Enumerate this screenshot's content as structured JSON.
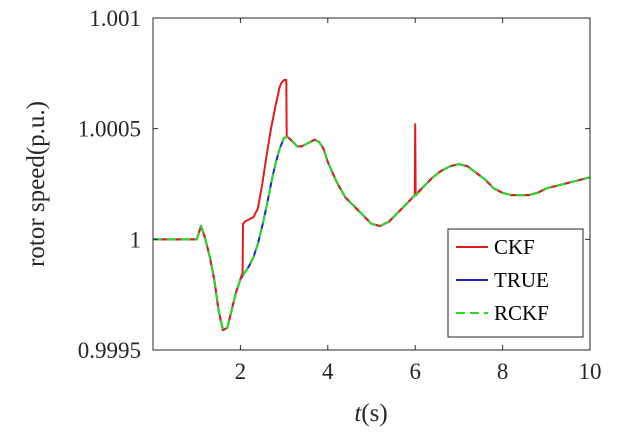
{
  "chart_data": {
    "type": "line",
    "xlabel_italic": "t",
    "xlabel_rest": "(s)",
    "ylabel": "rotor speed(p.u.)",
    "xlim": [
      0,
      10
    ],
    "ylim": [
      0.9995,
      1.001
    ],
    "x_ticks": [
      2,
      4,
      6,
      8,
      10
    ],
    "x_tick_labels": [
      "2",
      "4",
      "6",
      "8",
      "10"
    ],
    "y_ticks": [
      0.9995,
      1,
      1.0005,
      1.001
    ],
    "y_tick_labels": [
      "0.9995",
      "1",
      "1.0005",
      "1.001"
    ],
    "grid": false,
    "legend_position": "bottom-right",
    "series": [
      {
        "name": "CKF",
        "color": "#e31a1c",
        "dash": "solid",
        "x": [
          0,
          1.0,
          1.05,
          1.1,
          1.2,
          1.3,
          1.4,
          1.5,
          1.6,
          1.7,
          1.8,
          1.9,
          2.0,
          2.05,
          2.06,
          2.1,
          2.2,
          2.3,
          2.4,
          2.5,
          2.6,
          2.7,
          2.8,
          2.9,
          2.95,
          3.0,
          3.05,
          3.06,
          3.1,
          3.2,
          3.3,
          3.4,
          3.5,
          3.6,
          3.7,
          3.8,
          3.9,
          4.0,
          4.2,
          4.4,
          4.6,
          4.8,
          5.0,
          5.2,
          5.4,
          5.6,
          5.8,
          5.99,
          6.0,
          6.01,
          6.02,
          6.2,
          6.4,
          6.6,
          6.8,
          7.0,
          7.2,
          7.4,
          7.6,
          7.8,
          8.0,
          8.2,
          8.4,
          8.6,
          8.8,
          9.0,
          9.2,
          9.4,
          9.6,
          9.8,
          10.0
        ],
        "y": [
          1.0,
          1.0,
          1.00003,
          1.00006,
          1.0,
          0.99992,
          0.99982,
          0.99968,
          0.99959,
          0.9996,
          0.99968,
          0.99976,
          0.99982,
          0.99985,
          1.00007,
          1.00008,
          1.00009,
          1.0001,
          1.00014,
          1.00025,
          1.00038,
          1.0005,
          1.0006,
          1.00069,
          1.00071,
          1.00072,
          1.00072,
          1.00046,
          1.00046,
          1.00044,
          1.00042,
          1.00042,
          1.00043,
          1.00044,
          1.00045,
          1.00044,
          1.00041,
          1.00035,
          1.00026,
          1.00019,
          1.00015,
          1.00011,
          1.00007,
          1.00006,
          1.00008,
          1.00012,
          1.00016,
          1.0002,
          1.00052,
          1.00021,
          1.0002,
          1.00024,
          1.00028,
          1.00031,
          1.00033,
          1.00034,
          1.00033,
          1.0003,
          1.00027,
          1.00023,
          1.00021,
          1.0002,
          1.0002,
          1.0002,
          1.00021,
          1.00023,
          1.00024,
          1.00025,
          1.00026,
          1.00027,
          1.00028
        ]
      },
      {
        "name": "TRUE",
        "color": "#1f1fd6",
        "dash": "solid",
        "x": [
          0,
          1.0,
          1.05,
          1.1,
          1.2,
          1.3,
          1.4,
          1.5,
          1.6,
          1.7,
          1.8,
          1.9,
          2.0,
          2.1,
          2.2,
          2.3,
          2.4,
          2.5,
          2.6,
          2.7,
          2.8,
          2.9,
          3.0,
          3.1,
          3.2,
          3.3,
          3.4,
          3.5,
          3.6,
          3.7,
          3.8,
          3.9,
          4.0,
          4.2,
          4.4,
          4.6,
          4.8,
          5.0,
          5.2,
          5.4,
          5.6,
          5.8,
          6.0,
          6.2,
          6.4,
          6.6,
          6.8,
          7.0,
          7.2,
          7.4,
          7.6,
          7.8,
          8.0,
          8.2,
          8.4,
          8.6,
          8.8,
          9.0,
          9.2,
          9.4,
          9.6,
          9.8,
          10.0
        ],
        "y": [
          1.0,
          1.0,
          1.00003,
          1.00006,
          1.0,
          0.99992,
          0.99982,
          0.99968,
          0.99959,
          0.9996,
          0.99968,
          0.99976,
          0.99982,
          0.99985,
          0.99988,
          0.99992,
          0.99998,
          1.00006,
          1.00015,
          1.00025,
          1.00034,
          1.00041,
          1.00046,
          1.00046,
          1.00044,
          1.00042,
          1.00042,
          1.00043,
          1.00044,
          1.00045,
          1.00044,
          1.00041,
          1.00035,
          1.00026,
          1.00019,
          1.00015,
          1.00011,
          1.00007,
          1.00006,
          1.00008,
          1.00012,
          1.00016,
          1.0002,
          1.00024,
          1.00028,
          1.00031,
          1.00033,
          1.00034,
          1.00033,
          1.0003,
          1.00027,
          1.00023,
          1.00021,
          1.0002,
          1.0002,
          1.0002,
          1.00021,
          1.00023,
          1.00024,
          1.00025,
          1.00026,
          1.00027,
          1.00028
        ]
      },
      {
        "name": "RCKF",
        "color": "#22dd22",
        "dash": "dashed",
        "x": [
          0,
          1.0,
          1.05,
          1.1,
          1.2,
          1.3,
          1.4,
          1.5,
          1.6,
          1.7,
          1.8,
          1.9,
          2.0,
          2.1,
          2.2,
          2.3,
          2.4,
          2.5,
          2.6,
          2.7,
          2.8,
          2.9,
          3.0,
          3.1,
          3.2,
          3.3,
          3.4,
          3.5,
          3.6,
          3.7,
          3.8,
          3.9,
          4.0,
          4.2,
          4.4,
          4.6,
          4.8,
          5.0,
          5.2,
          5.4,
          5.6,
          5.8,
          6.0,
          6.2,
          6.4,
          6.6,
          6.8,
          7.0,
          7.2,
          7.4,
          7.6,
          7.8,
          8.0,
          8.2,
          8.4,
          8.6,
          8.8,
          9.0,
          9.2,
          9.4,
          9.6,
          9.8,
          10.0
        ],
        "y": [
          1.0,
          1.0,
          1.00003,
          1.00006,
          1.0,
          0.99992,
          0.99982,
          0.99968,
          0.99959,
          0.9996,
          0.99968,
          0.99976,
          0.99982,
          0.99985,
          0.99988,
          0.99992,
          0.99998,
          1.00006,
          1.00015,
          1.00025,
          1.00034,
          1.00041,
          1.00046,
          1.00046,
          1.00044,
          1.00042,
          1.00042,
          1.00043,
          1.00044,
          1.00045,
          1.00044,
          1.00041,
          1.00035,
          1.00026,
          1.00019,
          1.00015,
          1.00011,
          1.00007,
          1.00006,
          1.00008,
          1.00012,
          1.00016,
          1.0002,
          1.00024,
          1.00028,
          1.00031,
          1.00033,
          1.00034,
          1.00033,
          1.0003,
          1.00027,
          1.00023,
          1.00021,
          1.0002,
          1.0002,
          1.0002,
          1.00021,
          1.00023,
          1.00024,
          1.00025,
          1.00026,
          1.00027,
          1.00028
        ]
      }
    ]
  }
}
